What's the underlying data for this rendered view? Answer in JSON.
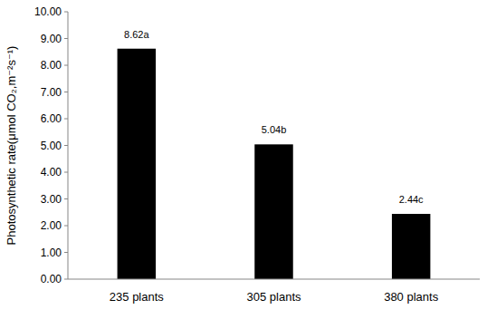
{
  "chart_data": {
    "type": "bar",
    "y_label": "Photosynthetic rate(μmol CO₂,m⁻²s⁻¹)",
    "categories": [
      "235 plants",
      "305 plants",
      "380 plants"
    ],
    "values": [
      8.62,
      5.04,
      2.44
    ],
    "value_labels": [
      "8.62a",
      "5.04b",
      "2.44c"
    ],
    "color": "#000000",
    "data_labels": true,
    "grid": false,
    "ylim": [
      0,
      10
    ],
    "yticks": [
      {
        "value": 0,
        "label": "0.00"
      },
      {
        "value": 1,
        "label": "1.00"
      },
      {
        "value": 2,
        "label": "2.00"
      },
      {
        "value": 3,
        "label": "3.00"
      },
      {
        "value": 4,
        "label": "4.00"
      },
      {
        "value": 5,
        "label": "5.00"
      },
      {
        "value": 6,
        "label": "6.00"
      },
      {
        "value": 7,
        "label": "7.00"
      },
      {
        "value": 8,
        "label": "8.00"
      },
      {
        "value": 9,
        "label": "9.00"
      },
      {
        "value": 10,
        "label": "10.00"
      }
    ]
  }
}
